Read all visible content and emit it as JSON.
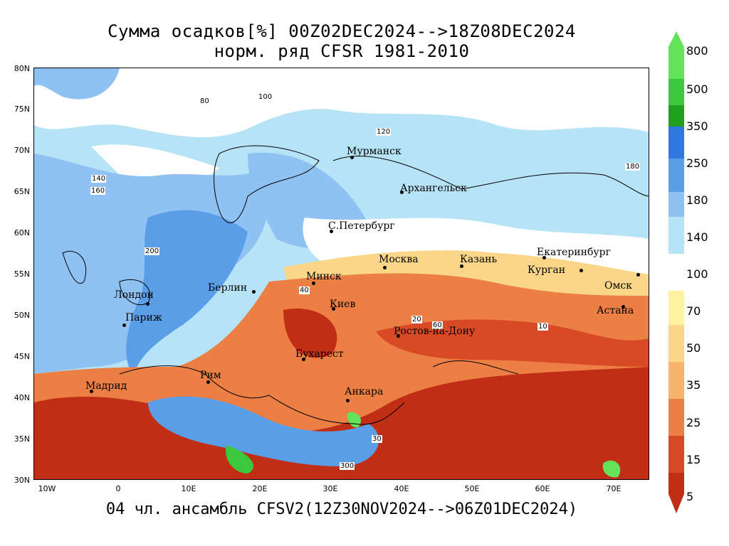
{
  "title": {
    "line1": "Сумма осадков[%] 00Z02DEC2024-->18Z08DEC2024",
    "line2": "норм. ряд CFSR 1981-2010"
  },
  "footer": "04 чл. ансамбль CFSV2(12Z30NOV2024-->06Z01DEC2024)",
  "axes": {
    "lat_labels": [
      "80N",
      "75N",
      "70N",
      "65N",
      "60N",
      "55N",
      "50N",
      "45N",
      "40N",
      "35N",
      "30N"
    ],
    "lon_labels": [
      "10W",
      "0",
      "10E",
      "20E",
      "30E",
      "40E",
      "50E",
      "60E",
      "70E"
    ]
  },
  "cities": [
    {
      "name": "Мурманск"
    },
    {
      "name": "Архангельск"
    },
    {
      "name": "С.Петербург"
    },
    {
      "name": "Москва"
    },
    {
      "name": "Казань"
    },
    {
      "name": "Екатеринбург"
    },
    {
      "name": "Курган"
    },
    {
      "name": "Омск"
    },
    {
      "name": "Астана"
    },
    {
      "name": "Минск"
    },
    {
      "name": "Берлин"
    },
    {
      "name": "Лондон"
    },
    {
      "name": "Париж"
    },
    {
      "name": "Киев"
    },
    {
      "name": "Ростов-на-Дону"
    },
    {
      "name": "Бухарест"
    },
    {
      "name": "Рим"
    },
    {
      "name": "Мадрид"
    },
    {
      "name": "Анкара"
    }
  ],
  "contour_labels": [
    "100",
    "80",
    "120",
    "140",
    "160",
    "200",
    "60",
    "40",
    "20",
    "10",
    "30",
    "300",
    "180"
  ],
  "colorbar": {
    "labels": [
      "800",
      "500",
      "350",
      "250",
      "180",
      "140",
      "100",
      "70",
      "50",
      "35",
      "25",
      "15",
      "5"
    ],
    "colors": {
      "c800": "#62e35a",
      "c500": "#3cc83c",
      "c350": "#1fa01f",
      "c250": "#2f78e0",
      "c180": "#5b9ee8",
      "c140": "#8fc2f2",
      "c120": "#b7e3f7",
      "c100": "#ffffff",
      "c70": "#fff3a0",
      "c50": "#f9d688",
      "c35": "#f6b56a",
      "c25": "#ec7f44",
      "c15": "#d84a26",
      "c5": "#c12e16"
    }
  }
}
